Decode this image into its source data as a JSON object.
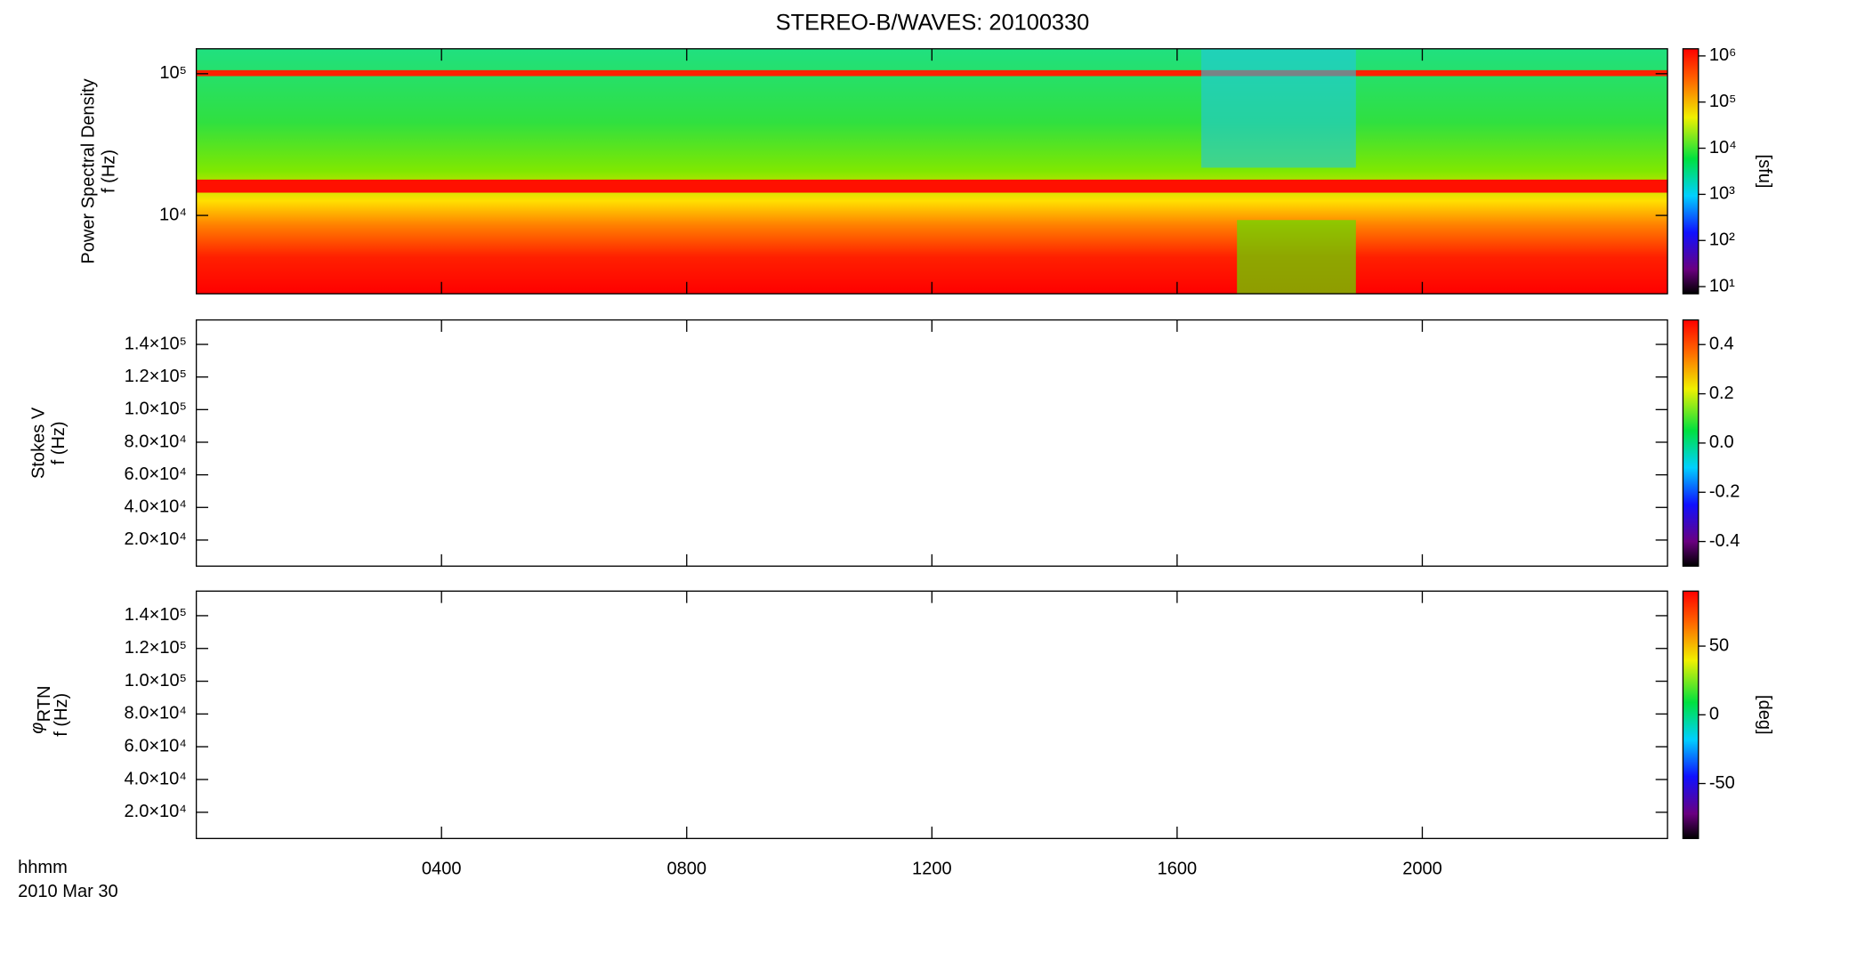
{
  "chart_data": [
    {
      "type": "heatmap",
      "title": "STEREO-B/WAVES: 20100330",
      "ylabel": [
        "Power Spectral Density",
        "f (Hz)"
      ],
      "ylog": true,
      "ylim": [
        2800,
        150000
      ],
      "yticks": [
        {
          "value": 10000,
          "label": "10⁴"
        },
        {
          "value": 100000,
          "label": "10⁵"
        }
      ],
      "colorbar": {
        "label": "[sfu]",
        "log": true,
        "lim": [
          7,
          1430000
        ],
        "ticks": [
          {
            "value": 10,
            "label": "10¹"
          },
          {
            "value": 100,
            "label": "10²"
          },
          {
            "value": 1000,
            "label": "10³"
          },
          {
            "value": 10000,
            "label": "10⁴"
          },
          {
            "value": 100000,
            "label": "10⁵"
          },
          {
            "value": 1000000,
            "label": "10⁶"
          }
        ]
      }
    },
    {
      "type": "heatmap",
      "ylabel": [
        "Stokes V",
        "f (Hz)"
      ],
      "ylog": false,
      "ylim": [
        4000,
        155000
      ],
      "yticks": [
        {
          "value": 20000,
          "label": "2.0×10⁴"
        },
        {
          "value": 40000,
          "label": "4.0×10⁴"
        },
        {
          "value": 60000,
          "label": "6.0×10⁴"
        },
        {
          "value": 80000,
          "label": "8.0×10⁴"
        },
        {
          "value": 100000,
          "label": "1.0×10⁵"
        },
        {
          "value": 120000,
          "label": "1.2×10⁵"
        },
        {
          "value": 140000,
          "label": "1.4×10⁵"
        }
      ],
      "colorbar": {
        "log": false,
        "lim": [
          -0.5,
          0.5
        ],
        "ticks": [
          -0.4,
          -0.2,
          {
            "value": 0,
            "label": "0.0"
          },
          0.2,
          0.4
        ]
      }
    },
    {
      "type": "heatmap",
      "quantity": {
        "symbol": "φ",
        "subscript": "RTN"
      },
      "ylabel": [
        "f (Hz)"
      ],
      "ylog": false,
      "ylim": [
        4000,
        155000
      ],
      "yticks": [
        {
          "value": 20000,
          "label": "2.0×10⁴"
        },
        {
          "value": 40000,
          "label": "4.0×10⁴"
        },
        {
          "value": 60000,
          "label": "6.0×10⁴"
        },
        {
          "value": 80000,
          "label": "8.0×10⁴"
        },
        {
          "value": 100000,
          "label": "1.0×10⁵"
        },
        {
          "value": 120000,
          "label": "1.2×10⁵"
        },
        {
          "value": 140000,
          "label": "1.4×10⁵"
        }
      ],
      "colorbar": {
        "label": "[deg]",
        "log": false,
        "lim": [
          -90,
          90
        ],
        "ticks": [
          -50,
          0,
          50
        ]
      },
      "xlabel": "hhmm",
      "date": "2010 Mar 30",
      "xlim": [
        0,
        24
      ],
      "xticks": [
        {
          "value": 4,
          "label": "0400"
        },
        {
          "value": 8,
          "label": "0800"
        },
        {
          "value": 12,
          "label": "1200"
        },
        {
          "value": 16,
          "label": "1600"
        },
        {
          "value": 20,
          "label": "2000"
        }
      ]
    }
  ]
}
